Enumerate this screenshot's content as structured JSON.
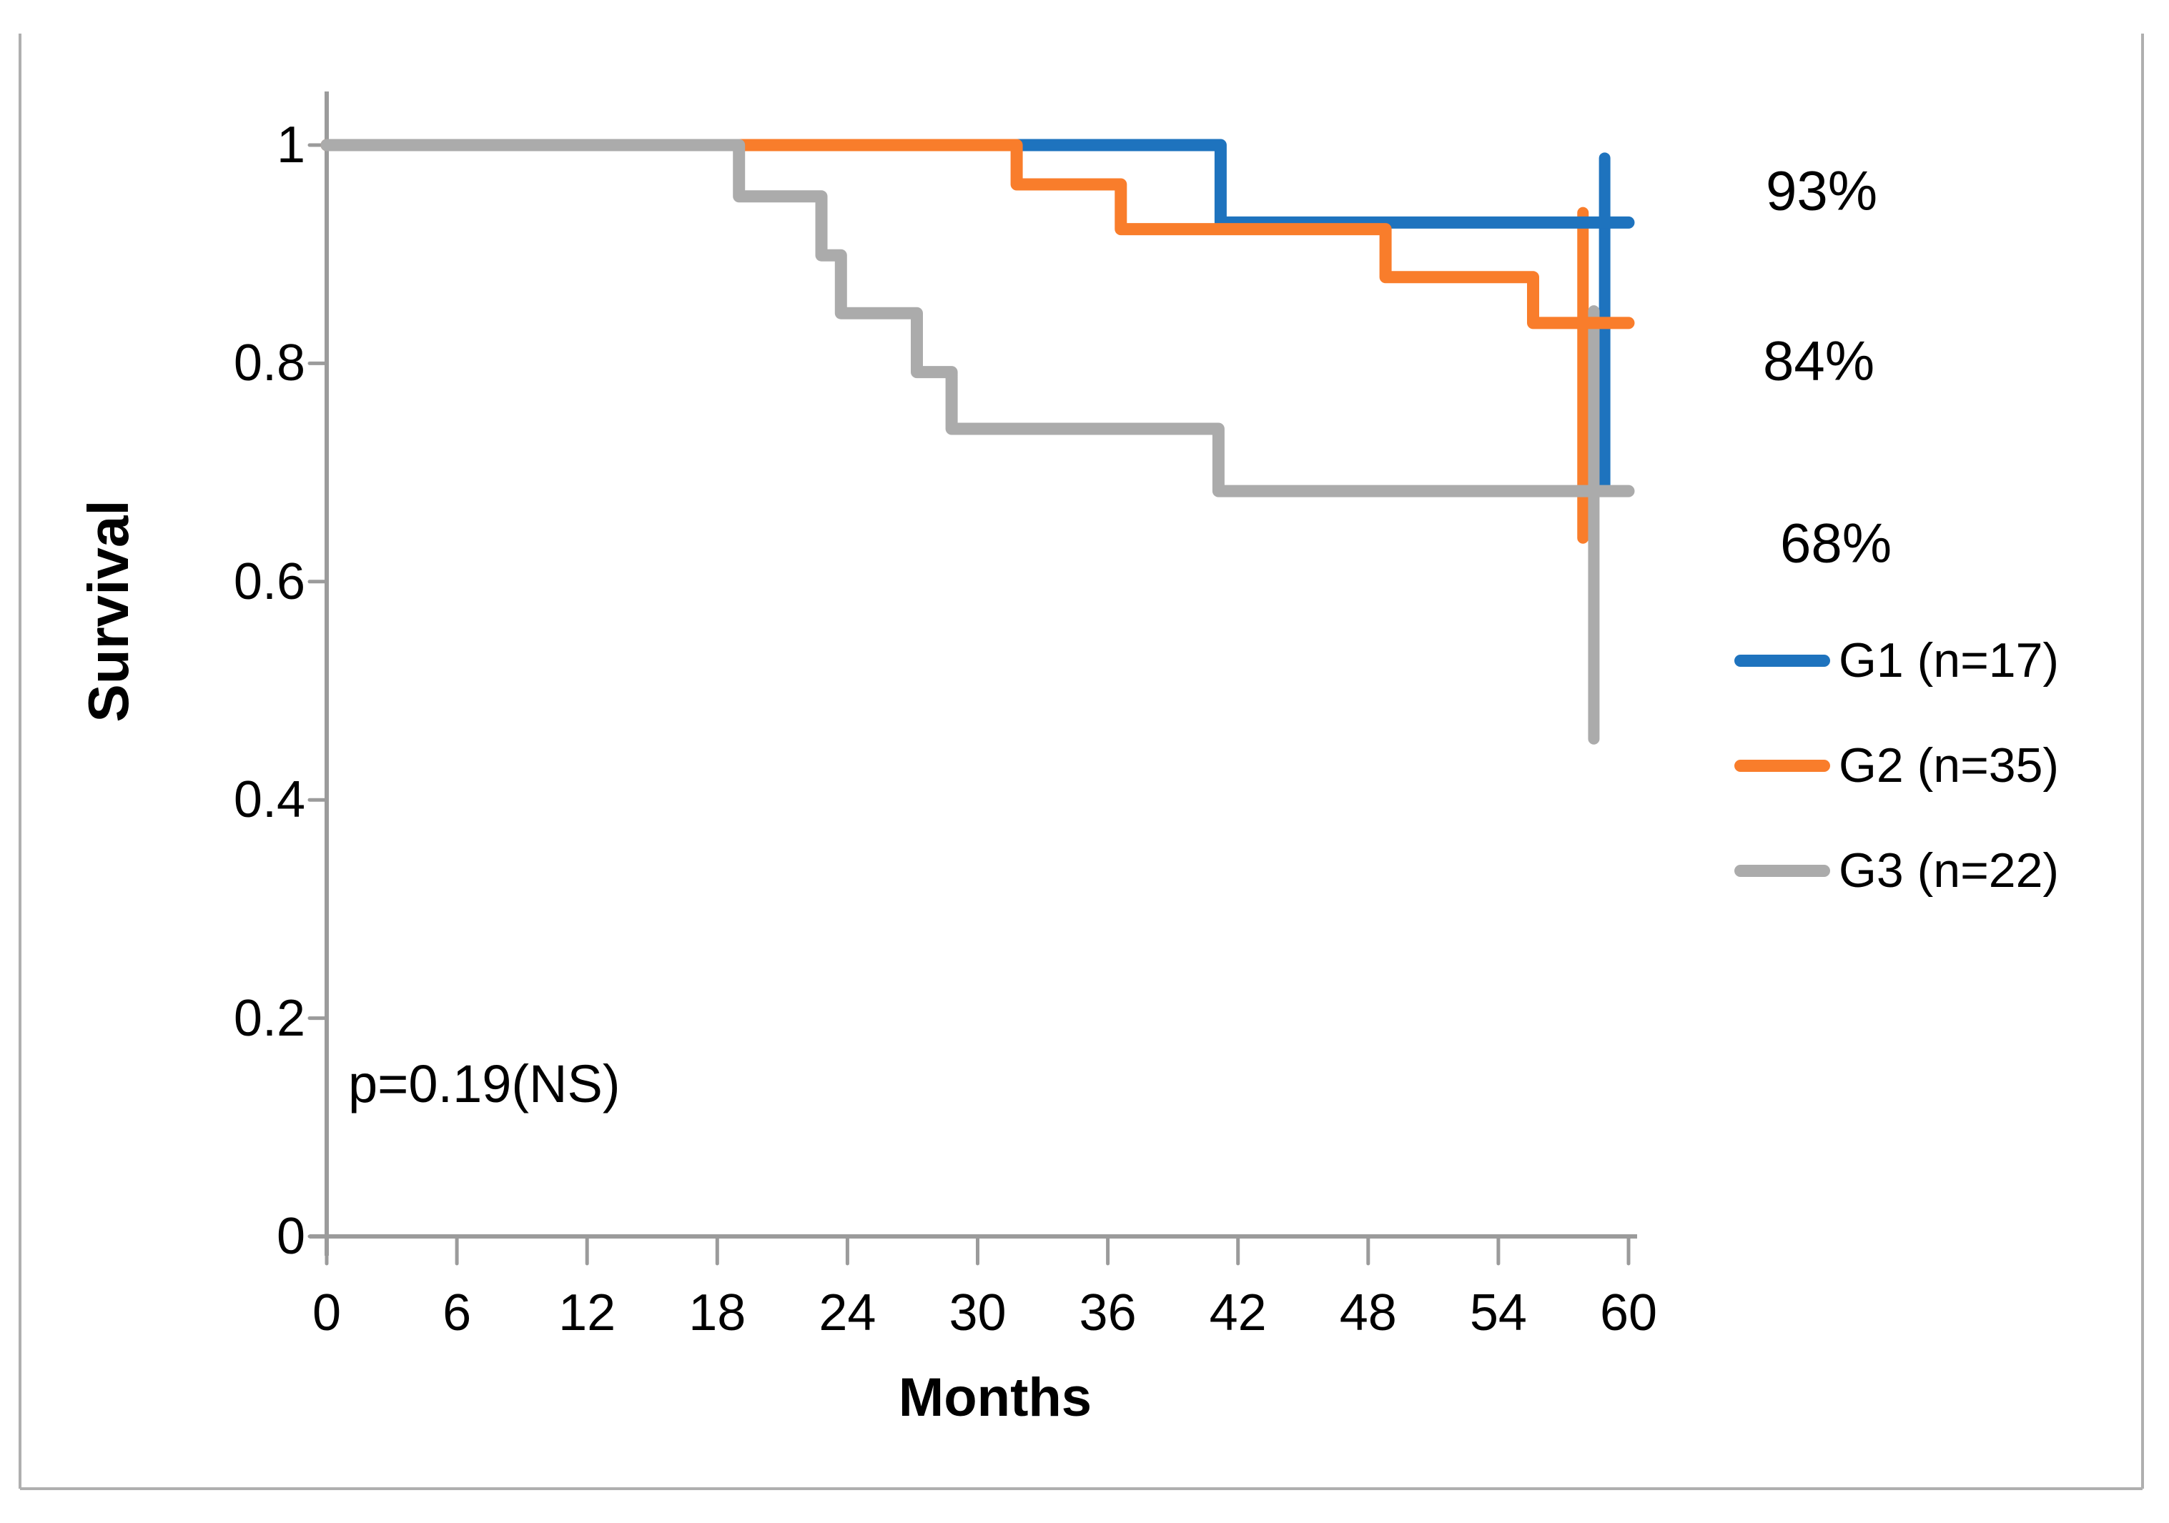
{
  "chart_data": {
    "type": "line",
    "subtype": "kaplan-meier-step",
    "title": "",
    "xlabel": "Months",
    "ylabel": "Survival",
    "xlim": [
      0,
      60
    ],
    "ylim": [
      0,
      1.05
    ],
    "grid": false,
    "legend_position": "right",
    "x_ticks": {
      "values": [
        0,
        6,
        12,
        18,
        24,
        30,
        36,
        42,
        48,
        54,
        60
      ],
      "labels": [
        "0",
        "6",
        "12",
        "18",
        "24",
        "30",
        "36",
        "42",
        "48",
        "54",
        "60"
      ]
    },
    "y_ticks": {
      "values": [
        1,
        0.8,
        0.6,
        0.4,
        0.2,
        0
      ],
      "labels": [
        "1",
        "0.8",
        "0.6",
        "0.4",
        "0.2",
        "0"
      ]
    },
    "series": [
      {
        "name": "G1 (n=17)",
        "color": "#1E73BE",
        "final_value_label": "93%",
        "points": [
          [
            0,
            1
          ],
          [
            41.2,
            1
          ],
          [
            41.2,
            0.929
          ],
          [
            60,
            0.929
          ]
        ],
        "censor_tick": {
          "x": 58.9,
          "from": 0.988,
          "to": 0.688
        }
      },
      {
        "name": "G2 (n=35)",
        "color": "#F97D2B",
        "final_value_label": "84%",
        "points": [
          [
            0,
            1
          ],
          [
            31.8,
            1
          ],
          [
            31.8,
            0.964
          ],
          [
            36.6,
            0.964
          ],
          [
            36.6,
            0.923
          ],
          [
            48.8,
            0.923
          ],
          [
            48.8,
            0.879
          ],
          [
            55.6,
            0.879
          ],
          [
            55.6,
            0.837
          ],
          [
            60,
            0.837
          ]
        ],
        "censor_tick": {
          "x": 57.9,
          "from": 0.938,
          "to": 0.64
        }
      },
      {
        "name": "G3 (n=22)",
        "color": "#ABABAB",
        "final_value_label": "68%",
        "points": [
          [
            0,
            1
          ],
          [
            19,
            1
          ],
          [
            19,
            0.953
          ],
          [
            22.8,
            0.953
          ],
          [
            22.8,
            0.899
          ],
          [
            23.7,
            0.899
          ],
          [
            23.7,
            0.846
          ],
          [
            27.2,
            0.846
          ],
          [
            27.2,
            0.792
          ],
          [
            28.8,
            0.792
          ],
          [
            28.8,
            0.74
          ],
          [
            41.1,
            0.74
          ],
          [
            41.1,
            0.683
          ],
          [
            60,
            0.683
          ]
        ],
        "censor_tick": {
          "x": 58.4,
          "from": 0.848,
          "to": 0.456
        }
      }
    ],
    "annotations": {
      "p_value": "p=0.19(NS)",
      "end_labels": [
        {
          "text": "93%"
        },
        {
          "text": "84%"
        },
        {
          "text": "68%"
        }
      ]
    }
  },
  "colors": {
    "axis": "#9B9B9B",
    "border": "#AFAFAF",
    "text": "#000000",
    "background": "#FFFFFF"
  }
}
